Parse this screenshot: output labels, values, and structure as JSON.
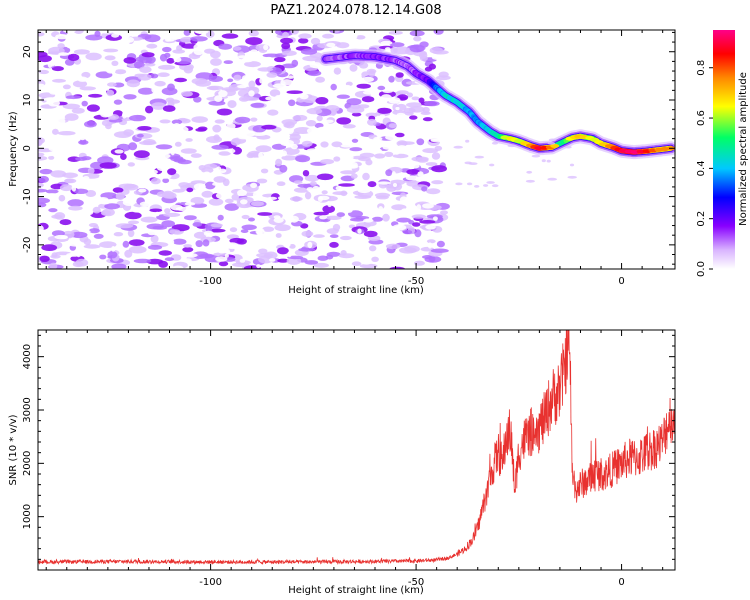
{
  "title": "PAZ1.2024.078.12.14.G08",
  "chart_data": [
    {
      "type": "heatmap",
      "xlabel": "Height of straight line (km)",
      "ylabel": "Frequency (Hz)",
      "xlim": [
        -142,
        13
      ],
      "ylim": [
        -25,
        24.5
      ],
      "x_ticks": [
        -100,
        -50,
        0
      ],
      "y_ticks": [
        -20,
        -10,
        0,
        10,
        20
      ],
      "colorbar": {
        "label": "Normalized spectral amplitude",
        "range": [
          0.0,
          0.95
        ],
        "ticks": [
          0.0,
          0.2,
          0.4,
          0.6,
          0.8
        ],
        "colors": [
          "#ffffff",
          "#d9b3ff",
          "#8800ff",
          "#0000ff",
          "#00c8ff",
          "#00ff66",
          "#ffff00",
          "#ff8800",
          "#ff0000",
          "#ff0088"
        ]
      },
      "noise_region_x": [
        -142,
        -43
      ],
      "ridge": {
        "x": [
          -72,
          -65,
          -60,
          -55,
          -52,
          -50,
          -47,
          -45,
          -43,
          -40,
          -37,
          -35,
          -32,
          -30,
          -27,
          -25,
          -22,
          -20,
          -17,
          -15,
          -12,
          -10,
          -7,
          -5,
          -2,
          0,
          3,
          6,
          9,
          12
        ],
        "y": [
          18.5,
          19.2,
          19.0,
          18.2,
          17.0,
          15.5,
          14.0,
          12.5,
          11.0,
          9.5,
          7.5,
          5.5,
          3.5,
          2.5,
          2.0,
          1.5,
          0.5,
          0.0,
          0.2,
          1.0,
          2.2,
          2.5,
          2.0,
          1.0,
          0.2,
          -0.5,
          -0.8,
          -0.6,
          -0.3,
          0.0
        ],
        "amplitude": [
          0.15,
          0.15,
          0.2,
          0.15,
          0.12,
          0.15,
          0.2,
          0.35,
          0.45,
          0.45,
          0.4,
          0.4,
          0.45,
          0.5,
          0.6,
          0.55,
          0.7,
          0.85,
          0.7,
          0.5,
          0.6,
          0.65,
          0.55,
          0.6,
          0.75,
          0.85,
          0.9,
          0.8,
          0.7,
          0.7
        ]
      }
    },
    {
      "type": "line",
      "xlabel": "Height of straight line (km)",
      "ylabel": "SNR (10 * v/v)",
      "xlim": [
        -142,
        13
      ],
      "ylim": [
        0,
        4500
      ],
      "x_ticks": [
        -100,
        -50,
        0
      ],
      "y_ticks": [
        1000,
        2000,
        3000,
        4000
      ],
      "color": "#e8312f",
      "series": [
        {
          "x": [
            -142,
            -120,
            -100,
            -80,
            -60,
            -50,
            -45,
            -42,
            -40,
            -38,
            -36,
            -35,
            -34,
            -33,
            -32,
            -31,
            -30,
            -29,
            -28,
            -27,
            -26,
            -25,
            -24,
            -23,
            -22,
            -21,
            -20,
            -19,
            -18,
            -17,
            -16,
            -15,
            -14,
            -13,
            -12.5,
            -12,
            -11,
            -10,
            -8,
            -6,
            -4,
            -2,
            0,
            2,
            4,
            6,
            8,
            10,
            11,
            12,
            13
          ],
          "y": [
            150,
            160,
            150,
            150,
            160,
            170,
            190,
            230,
            300,
            400,
            600,
            800,
            1100,
            1400,
            1700,
            2000,
            2200,
            2000,
            2500,
            2600,
            1500,
            2200,
            2400,
            2500,
            2600,
            2300,
            2700,
            2800,
            3000,
            3200,
            3300,
            3400,
            3700,
            4400,
            3800,
            1800,
            1500,
            1600,
            1700,
            1800,
            1800,
            1900,
            2000,
            2100,
            2100,
            2200,
            2300,
            2400,
            2700,
            2900,
            2600
          ]
        }
      ]
    }
  ]
}
